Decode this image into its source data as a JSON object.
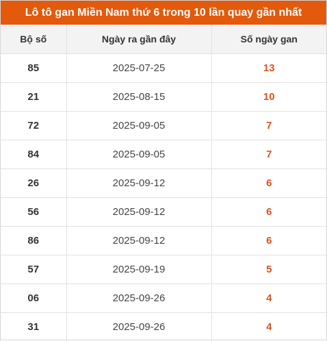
{
  "title": "Lô tô gan Miền Nam thứ 6 trong 10 lần quay gần nhất",
  "columns": [
    "Bộ số",
    "Ngày ra gần đây",
    "Số ngày gan"
  ],
  "accent_color": "#e35a0c",
  "value_color": "#d9531e",
  "rows": [
    {
      "number": "85",
      "date": "2025-07-25",
      "days": "13"
    },
    {
      "number": "21",
      "date": "2025-08-15",
      "days": "10"
    },
    {
      "number": "72",
      "date": "2025-09-05",
      "days": "7"
    },
    {
      "number": "84",
      "date": "2025-09-05",
      "days": "7"
    },
    {
      "number": "26",
      "date": "2025-09-12",
      "days": "6"
    },
    {
      "number": "56",
      "date": "2025-09-12",
      "days": "6"
    },
    {
      "number": "86",
      "date": "2025-09-12",
      "days": "6"
    },
    {
      "number": "57",
      "date": "2025-09-19",
      "days": "5"
    },
    {
      "number": "06",
      "date": "2025-09-26",
      "days": "4"
    },
    {
      "number": "31",
      "date": "2025-09-26",
      "days": "4"
    }
  ]
}
